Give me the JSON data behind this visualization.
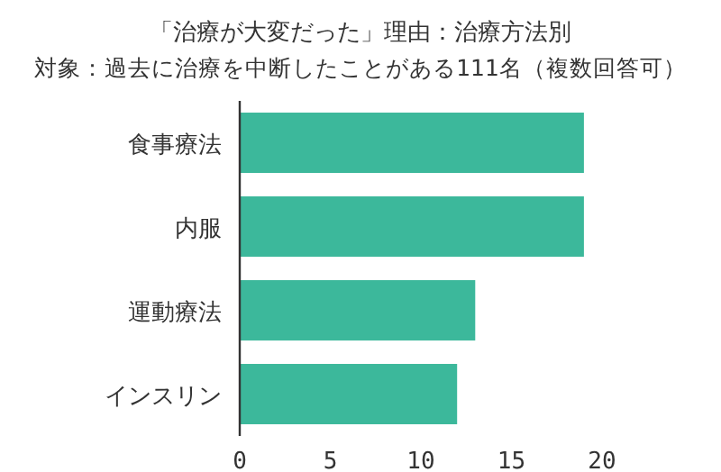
{
  "chart_data": {
    "type": "bar",
    "orientation": "horizontal",
    "title": "「治療が大変だった」理由：治療方法別",
    "subtitle": "対象：過去に治療を中断したことがある111名（複数回答可）",
    "categories": [
      "食事療法",
      "内服",
      "運動療法",
      "インスリン"
    ],
    "values": [
      19,
      19,
      13,
      12
    ],
    "color": "#3cb89b",
    "xlim": [
      0,
      20
    ],
    "xticks": [
      0,
      5,
      10,
      15,
      20
    ]
  }
}
